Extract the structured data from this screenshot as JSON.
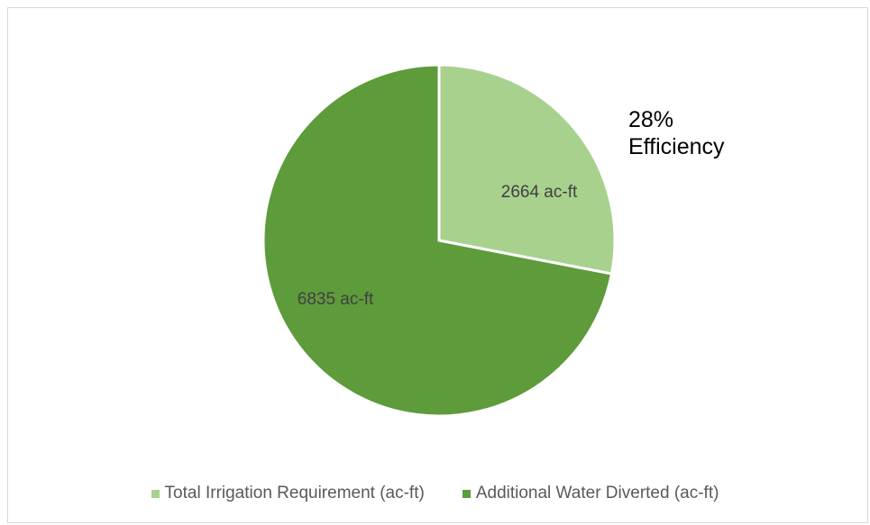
{
  "chart_data": {
    "type": "pie",
    "title": "",
    "slices": [
      {
        "name": "Total Irrigation Requirement (ac-ft)",
        "value": 2664,
        "label": "2664 ac-ft",
        "color": "#a9d18e"
      },
      {
        "name": "Additional Water Diverted (ac-ft)",
        "value": 6835,
        "label": "6835 ac-ft",
        "color": "#5e9b3b"
      }
    ],
    "annotation": {
      "line1": "28%",
      "line2": "Efficiency"
    },
    "legend_position": "bottom",
    "label_color": "#404040"
  }
}
